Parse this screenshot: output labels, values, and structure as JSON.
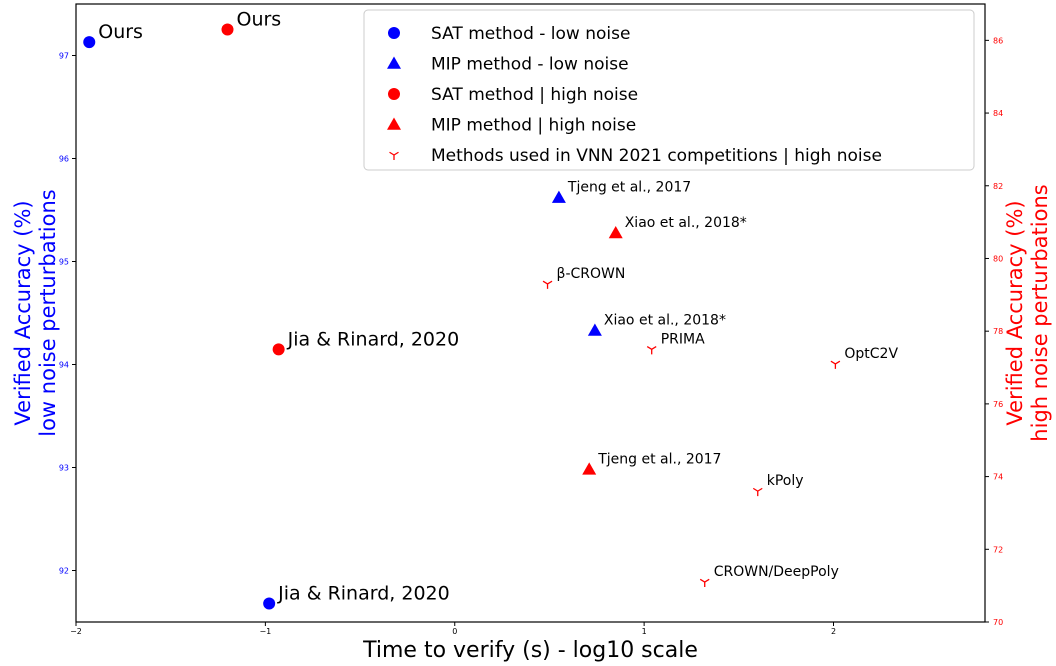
{
  "chart_data": {
    "type": "scatter",
    "xlabel": "Time to verify (s) - log10 scale",
    "ylabel_left": [
      "Verified Accuracy (%)",
      "low noise perturbations"
    ],
    "ylabel_right": [
      "Verified Accuracy (%)",
      "high noise perturbations"
    ],
    "xlim": [
      -2,
      2.8
    ],
    "ylim_left": [
      91.5,
      97.5
    ],
    "ylim_right": [
      70,
      87
    ],
    "xticks": [
      "-2",
      "-1",
      "0",
      "1",
      "2"
    ],
    "yticks_left": [
      "92",
      "93",
      "94",
      "95",
      "96",
      "97"
    ],
    "yticks_right": [
      "70",
      "72",
      "74",
      "76",
      "78",
      "80",
      "82",
      "84",
      "86"
    ],
    "grid": false,
    "legend_position": "top-right",
    "legend": [
      "SAT method - low noise",
      "MIP method - low noise",
      "SAT method | high noise",
      "MIP method | high noise",
      "Methods used in VNN 2021 competitions | high noise"
    ],
    "colors": {
      "low": "#0000ff",
      "high": "#ff0000",
      "text": "#000000"
    },
    "points": [
      {
        "x": -1.93,
        "y": 97.13,
        "axis": "left",
        "marker": "circle",
        "label": "Ours"
      },
      {
        "x": -0.98,
        "y": 91.68,
        "axis": "left",
        "marker": "circle",
        "label": "Jia & Rinard, 2020"
      },
      {
        "x": 0.55,
        "y": 95.62,
        "axis": "left",
        "marker": "triangle",
        "label": "Tjeng et al., 2017"
      },
      {
        "x": 0.74,
        "y": 94.33,
        "axis": "left",
        "marker": "triangle",
        "label": "Xiao et al., 2018*"
      },
      {
        "x": -1.2,
        "y": 86.3,
        "axis": "right",
        "marker": "circle",
        "label": "Ours"
      },
      {
        "x": -0.93,
        "y": 77.5,
        "axis": "right",
        "marker": "circle",
        "label": "Jia & Rinard, 2020"
      },
      {
        "x": 0.85,
        "y": 80.7,
        "axis": "right",
        "marker": "triangle",
        "label": "Xiao et al., 2018*"
      },
      {
        "x": 0.71,
        "y": 74.2,
        "axis": "right",
        "marker": "triangle",
        "label": "Tjeng et al., 2017"
      },
      {
        "x": 0.49,
        "y": 79.3,
        "axis": "right",
        "marker": "tri_down",
        "label": "β-CROWN"
      },
      {
        "x": 1.04,
        "y": 77.5,
        "axis": "right",
        "marker": "tri_down",
        "label": "PRIMA"
      },
      {
        "x": 2.01,
        "y": 77.1,
        "axis": "right",
        "marker": "tri_down",
        "label": "OptC2V"
      },
      {
        "x": 1.6,
        "y": 73.6,
        "axis": "right",
        "marker": "tri_down",
        "label": "kPoly"
      },
      {
        "x": 1.32,
        "y": 71.1,
        "axis": "right",
        "marker": "tri_down",
        "label": "CROWN/DeepPoly"
      }
    ]
  }
}
